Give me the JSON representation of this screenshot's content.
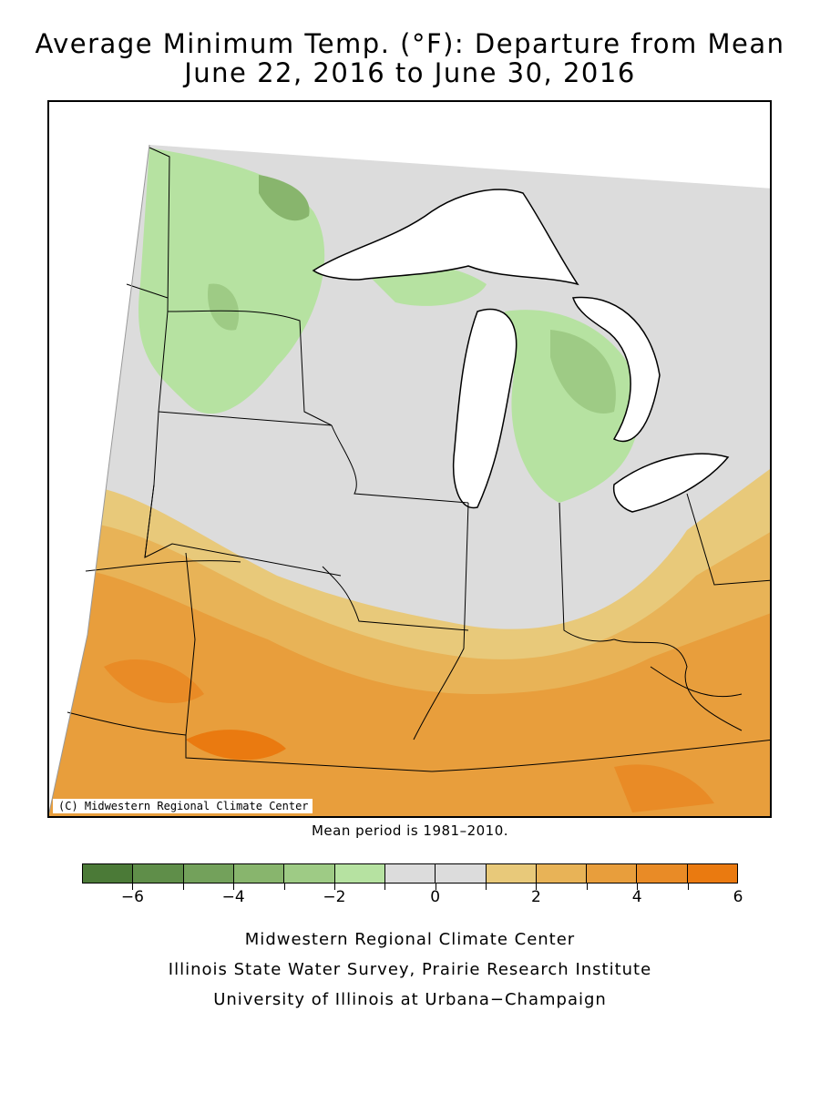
{
  "title": {
    "line1": "Average Minimum Temp. (°F): Departure from Mean",
    "line2": "June 22, 2016 to June 30, 2016"
  },
  "map": {
    "copyright": "(C) Midwestern Regional Climate Center"
  },
  "mean_note": "Mean period is 1981–2010.",
  "legend": {
    "colors": [
      "#4b7a37",
      "#5f8e49",
      "#73a15b",
      "#88b56d",
      "#9ecb85",
      "#b6e2a1",
      "#dcdcdc",
      "#dcdcdc",
      "#e8c97a",
      "#e8b357",
      "#e89e3c",
      "#e98b26",
      "#ea7a10"
    ],
    "tick_labels": [
      "−6",
      "−4",
      "−2",
      "0",
      "2",
      "4",
      "6"
    ]
  },
  "credits": [
    "Midwestern Regional Climate Center",
    "Illinois State Water Survey, Prairie Research Institute",
    "University of Illinois at Urbana−Champaign"
  ]
}
